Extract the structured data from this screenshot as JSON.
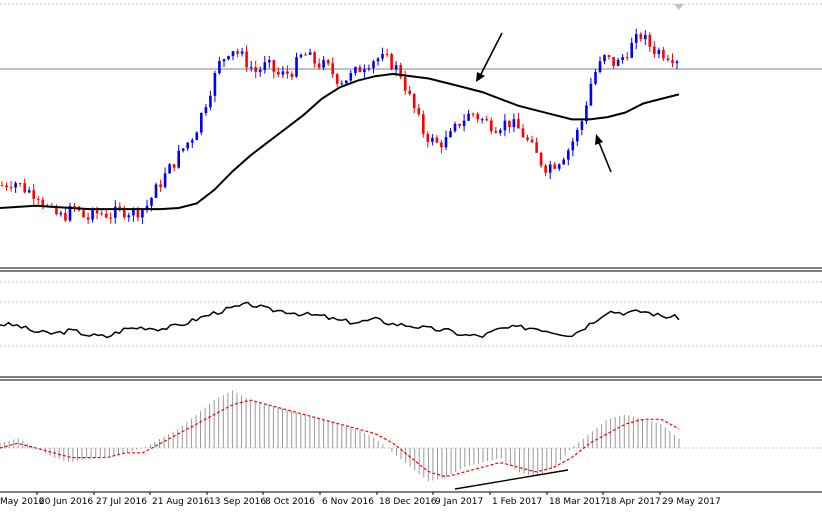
{
  "colors": {
    "background": "#ffffff",
    "bull_candle": "#0000ff",
    "bear_candle": "#ff0000",
    "moving_average": "#000000",
    "oscillator_line": "#000000",
    "histogram": "#999999",
    "signal_line": "#ff0000",
    "grid": "#c0c0c0",
    "annotation": "#000000"
  },
  "time_axis": {
    "labels": [
      "May 2016",
      "20 Jun 2016",
      "27 Jul 2016",
      "21 Aug 2016",
      "13 Sep 2016",
      "8 Oct 2016",
      "6 Nov 2016",
      "18 Dec 2016",
      "9 Jan 2017",
      "1 Feb 2017",
      "18 Mar 2017",
      "18 Apr 2017",
      "29 May 2017"
    ]
  },
  "chart_data": [
    {
      "type": "candlestick",
      "title": "",
      "series": [
        {
          "name": "",
          "chart": "candlestick"
        },
        {
          "name": "",
          "chart": "line"
        }
      ],
      "price_path": [
        72,
        74,
        70,
        68,
        60,
        58,
        62,
        57,
        60,
        59,
        61,
        60,
        63,
        72,
        80,
        88,
        95,
        110,
        125,
        133,
        128,
        122,
        125,
        120,
        122,
        130,
        126,
        124,
        118,
        120,
        125,
        128,
        127,
        122,
        108,
        95,
        90,
        92,
        100,
        104,
        100,
        98,
        100,
        96,
        88,
        80,
        82,
        88,
        98,
        120,
        128,
        125,
        132,
        138,
        132,
        130,
        128
      ],
      "moving_average_path": [
        62,
        62.5,
        63,
        62.5,
        62,
        61.5,
        61.5,
        61.5,
        61.5,
        61.5,
        62,
        64,
        70,
        78,
        85,
        91,
        97,
        103,
        110,
        115,
        118,
        120,
        121,
        120,
        119,
        117,
        115,
        113,
        110,
        107,
        105,
        103,
        101,
        101,
        102,
        104,
        108,
        110,
        112
      ],
      "markers": [
        {
          "type": "arrow",
          "direction": "down-left"
        },
        {
          "type": "arrow",
          "direction": "up-left"
        }
      ],
      "grid": true,
      "legend": "none"
    },
    {
      "type": "line",
      "title": "",
      "series": [
        {
          "name": "",
          "values": [
            50,
            48,
            40,
            38,
            42,
            36,
            34,
            44,
            46,
            44,
            48,
            56,
            64,
            70,
            75,
            68,
            66,
            62,
            60,
            54,
            52,
            56,
            50,
            48,
            44,
            42,
            36,
            35,
            44,
            46,
            45,
            40,
            36,
            50,
            66,
            64,
            66,
            60,
            58
          ]
        }
      ],
      "levels": [
        30,
        70
      ],
      "grid": true,
      "legend": "none"
    },
    {
      "type": "histogram",
      "title": "",
      "series": [
        {
          "name": "",
          "chart": "bar",
          "values": [
            1,
            2,
            0,
            -2,
            -3,
            -2,
            -2,
            -1,
            0,
            2,
            4,
            7,
            10,
            12,
            10,
            9,
            8,
            7,
            6,
            5,
            4,
            2,
            -1,
            -4,
            -7,
            -6,
            -4,
            -3,
            -2,
            -5,
            -6,
            -4,
            0,
            3,
            6,
            7,
            6,
            5,
            2
          ]
        },
        {
          "name": "",
          "chart": "line",
          "values": [
            0,
            1,
            0,
            -1,
            -2,
            -2,
            -2,
            -1,
            -1,
            1,
            3,
            5,
            7,
            9,
            10,
            9,
            8,
            7,
            6,
            5,
            4,
            3,
            1,
            -2,
            -5,
            -6,
            -5,
            -4,
            -3,
            -4,
            -5,
            -4,
            -2,
            1,
            3,
            5,
            6,
            6,
            4
          ]
        }
      ],
      "markers": [
        {
          "type": "trendline",
          "direction": "up"
        }
      ],
      "zero_line": true,
      "grid": false,
      "legend": "none"
    }
  ]
}
